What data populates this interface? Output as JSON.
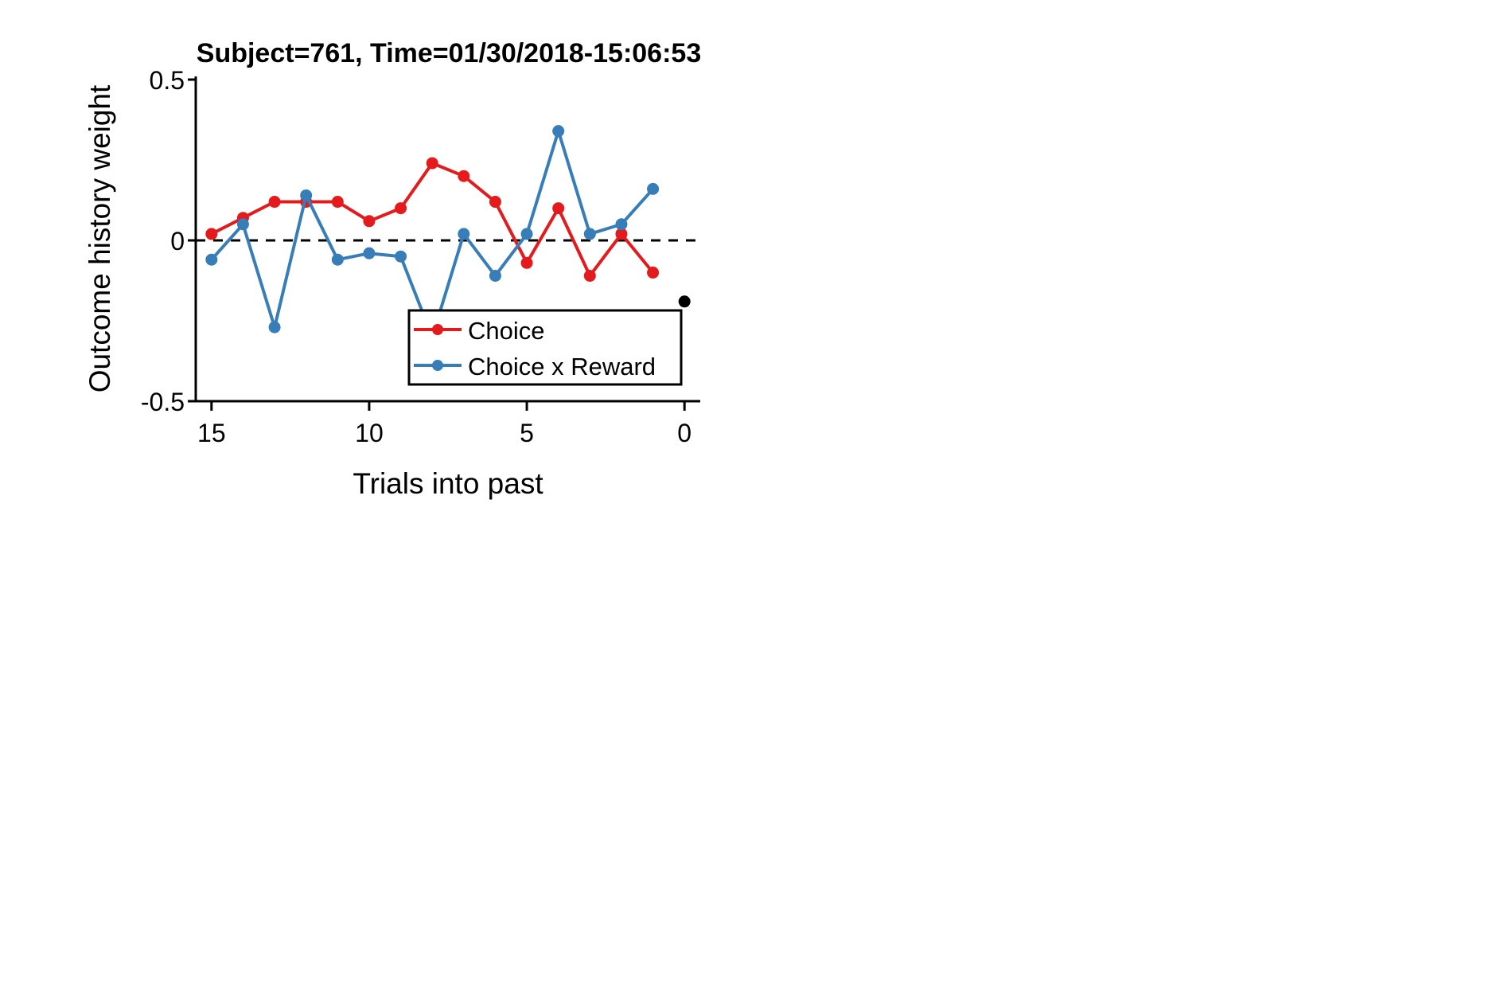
{
  "chart_data": {
    "type": "line",
    "title": "Subject=761, Time=01/30/2018-15:06:53",
    "xlabel": "Trials into past",
    "ylabel": "Outcome history weight",
    "xlim": [
      15.5,
      -0.5
    ],
    "ylim": [
      -0.5,
      0.5
    ],
    "x_axis_reversed": true,
    "xticks": [
      15,
      10,
      5,
      0
    ],
    "xtick_labels": [
      "15",
      "10",
      "5",
      "0"
    ],
    "yticks": [
      -0.5,
      0,
      0.5
    ],
    "ytick_labels": [
      "-0.5",
      "0",
      "0.5"
    ],
    "reference_line": {
      "y": 0,
      "style": "dashed",
      "color": "#000000"
    },
    "grid": false,
    "legend_position": "lower-right",
    "series": [
      {
        "name": "Choice",
        "color": "#e41a1c",
        "x": [
          15,
          14,
          13,
          12,
          11,
          10,
          9,
          8,
          7,
          6,
          5,
          4,
          3,
          2,
          1
        ],
        "y": [
          0.02,
          0.07,
          0.12,
          0.12,
          0.12,
          0.06,
          0.1,
          0.24,
          0.2,
          0.12,
          -0.07,
          0.1,
          -0.11,
          0.02,
          -0.1
        ]
      },
      {
        "name": "Choice x Reward",
        "color": "#377eb8",
        "x": [
          15,
          14,
          13,
          12,
          11,
          10,
          9,
          8,
          7,
          6,
          5,
          4,
          3,
          2,
          1
        ],
        "y": [
          -0.06,
          0.05,
          -0.27,
          0.14,
          -0.06,
          -0.04,
          -0.05,
          -0.3,
          0.02,
          -0.11,
          0.02,
          0.34,
          0.02,
          0.05,
          0.16
        ]
      }
    ],
    "extra_points": [
      {
        "x": 0,
        "y": -0.19,
        "color": "#000000"
      }
    ]
  }
}
